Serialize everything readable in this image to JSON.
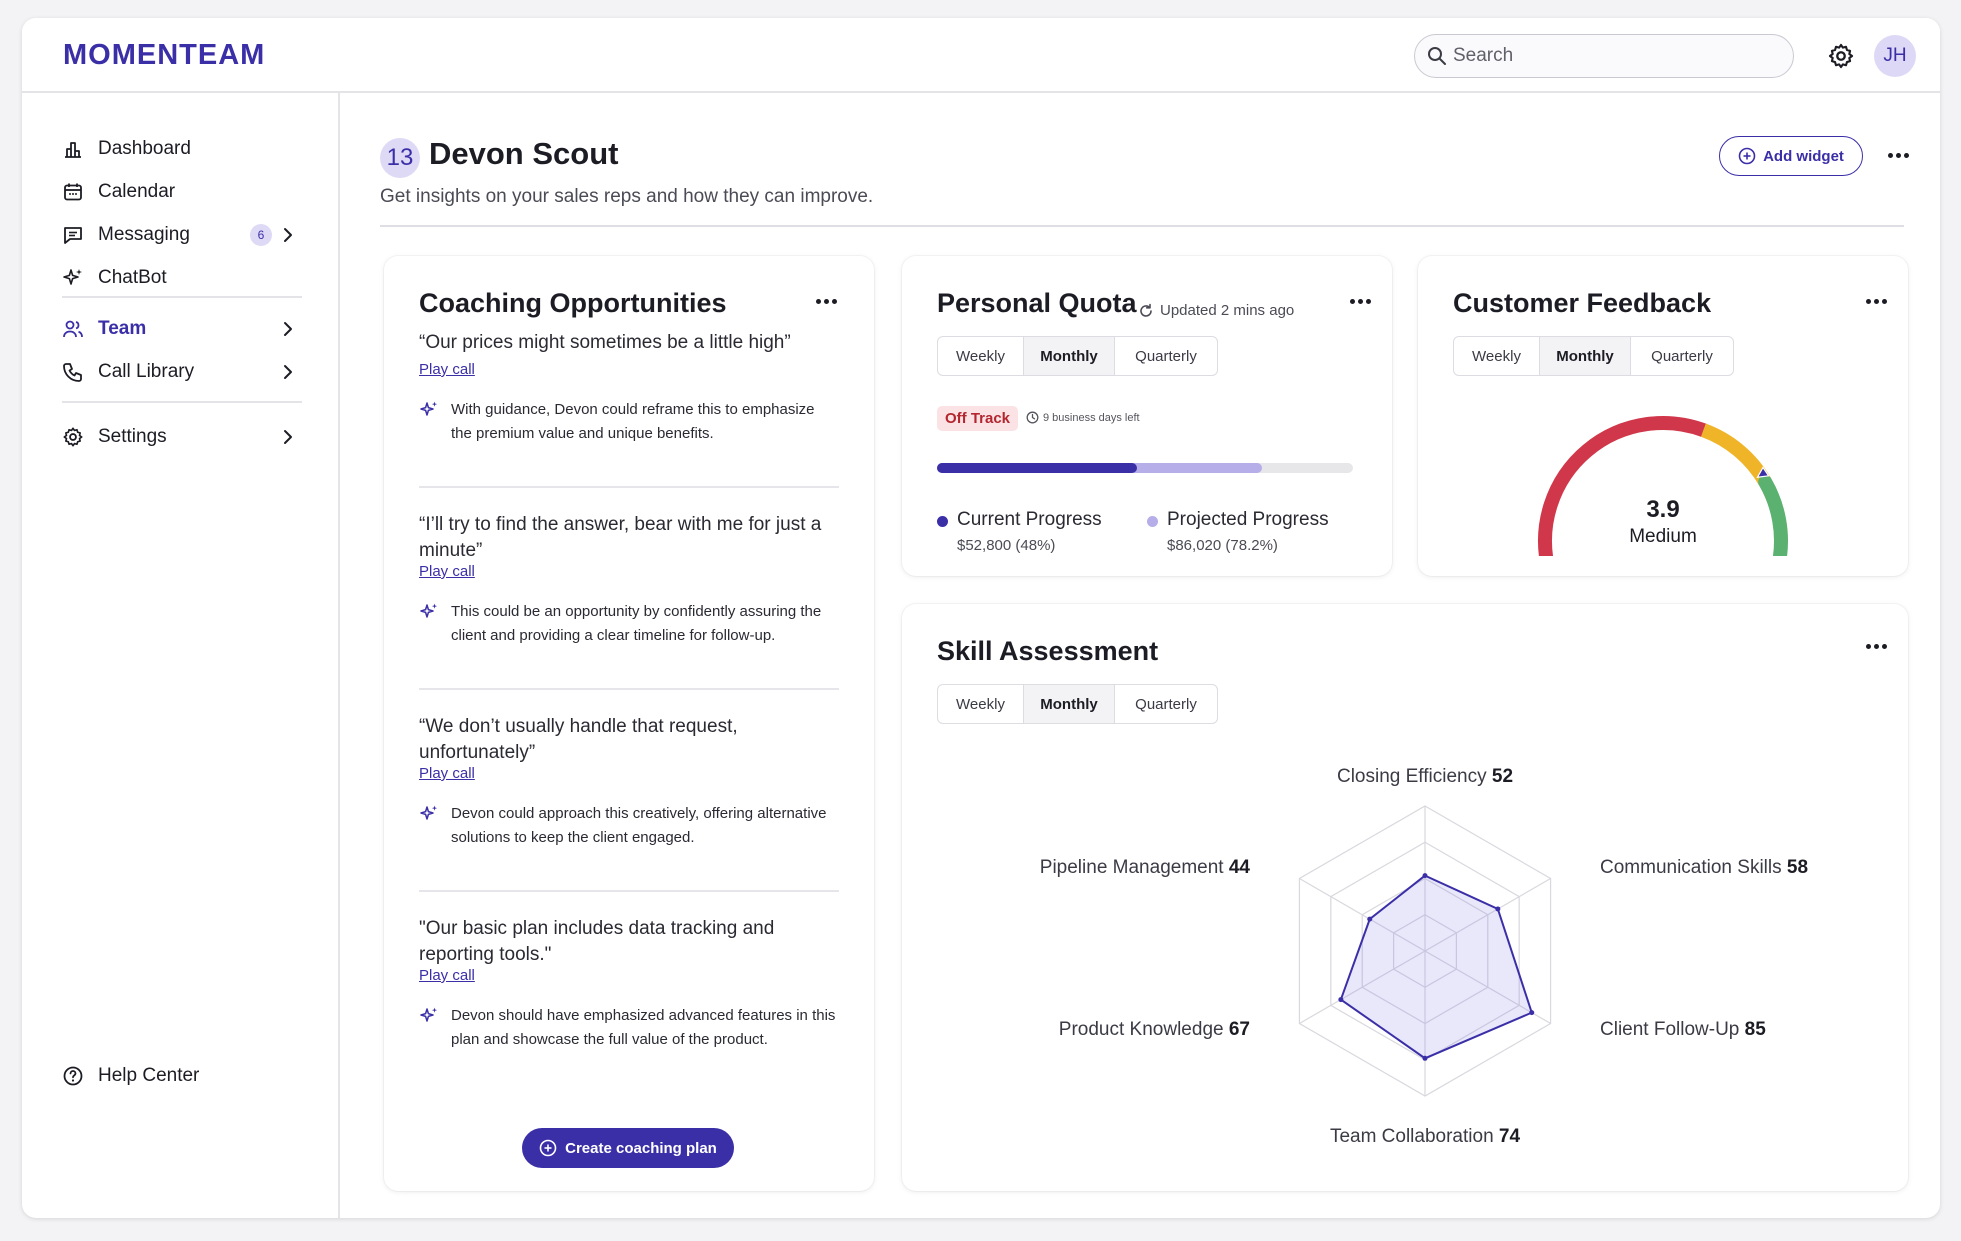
{
  "app": {
    "logo": "MOMENTEAM"
  },
  "header": {
    "search_placeholder": "Search",
    "avatar_initials": "JH"
  },
  "sidebar": {
    "items": [
      {
        "label": "Dashboard"
      },
      {
        "label": "Calendar"
      },
      {
        "label": "Messaging",
        "badge": "6"
      },
      {
        "label": "ChatBot"
      },
      {
        "label": "Team"
      },
      {
        "label": "Call Library"
      },
      {
        "label": "Settings"
      }
    ],
    "help": "Help Center"
  },
  "page": {
    "badge": "13",
    "title": "Devon Scout",
    "subtitle": "Get insights on your sales reps and how they can improve.",
    "add_widget": "Add widget"
  },
  "coaching": {
    "title": "Coaching Opportunities",
    "items": [
      {
        "quote": "“Our prices might sometimes be a little high”",
        "play": "Play call",
        "tip": "With guidance, Devon could reframe this to emphasize the premium value and unique benefits."
      },
      {
        "quote": "“I’ll try to find the answer, bear with me for just a minute”",
        "play": "Play call",
        "tip": "This could be an opportunity by confidently assuring the client and providing a clear timeline for follow-up."
      },
      {
        "quote": "“We don’t usually handle that request, unfortunately”",
        "play": "Play call",
        "tip": "Devon could approach this creatively, offering alternative solutions to keep the client engaged."
      },
      {
        "quote": "\"Our basic plan includes data tracking and reporting tools.\"",
        "play": "Play call",
        "tip": "Devon should have emphasized advanced features in this plan and showcase the full value of the product."
      }
    ],
    "button": "Create coaching plan"
  },
  "periods": [
    "Weekly",
    "Monthly",
    "Quarterly"
  ],
  "quota": {
    "title": "Personal Quota",
    "updated": "Updated 2 mins ago",
    "status": "Off Track",
    "days_left": "9 business days left",
    "current_label": "Current Progress",
    "current_value": "$52,800 (48%)",
    "current_pct": 48,
    "projected_label": "Projected Progress",
    "projected_value": "$86,020 (78.2%)",
    "projected_pct": 78.2,
    "colors": {
      "current": "#3b2fa8",
      "projected": "#b6aee8"
    }
  },
  "feedback": {
    "title": "Customer Feedback",
    "score": "3.9",
    "rating": "Medium",
    "score_value": 3.9,
    "scale_max": 5,
    "colors": {
      "low": "#d1374a",
      "mid": "#f0b429",
      "high": "#5bb16f"
    }
  },
  "skills": {
    "title": "Skill Assessment",
    "chart_data": {
      "type": "radar",
      "categories": [
        "Closing Efficiency",
        "Communication Skills",
        "Client Follow-Up",
        "Team Collaboration",
        "Product Knowledge",
        "Pipeline Management"
      ],
      "values": [
        52,
        58,
        85,
        74,
        67,
        44
      ],
      "ylim": [
        0,
        100
      ]
    }
  }
}
